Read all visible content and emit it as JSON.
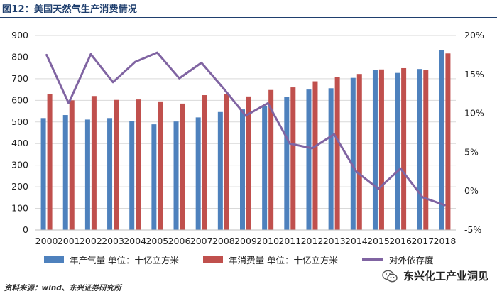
{
  "header": {
    "title": "图12：美国天然气生产消费情况"
  },
  "footer": {
    "source": "资料来源：wind、东兴证券研究所",
    "watermark": "东兴化工产业洞见"
  },
  "icons": {
    "watermark_icon": "wechat-icon"
  },
  "chart_data": {
    "type": "bar",
    "title": "美国天然气生产消费情况",
    "categories": [
      "2000",
      "2001",
      "2002",
      "2003",
      "2004",
      "2005",
      "2006",
      "2007",
      "2008",
      "2009",
      "2010",
      "2011",
      "2012",
      "2013",
      "2014",
      "2015",
      "2016",
      "2017",
      "2018"
    ],
    "series": [
      {
        "name": "年产气量 单位：十亿立方米",
        "type": "bar",
        "axis": "left",
        "color": "#4e81bd",
        "values": [
          518,
          532,
          511,
          518,
          504,
          489,
          502,
          521,
          546,
          558,
          575,
          615,
          650,
          656,
          704,
          740,
          727,
          745,
          832
        ]
      },
      {
        "name": "年消费量 单位：十亿立方米",
        "type": "bar",
        "axis": "left",
        "color": "#c0504d",
        "values": [
          628,
          600,
          620,
          602,
          604,
          595,
          585,
          624,
          629,
          618,
          648,
          660,
          688,
          708,
          722,
          743,
          749,
          739,
          817
        ]
      },
      {
        "name": "对外依存度",
        "type": "line",
        "axis": "right",
        "color": "#8064a2",
        "values": [
          17.5,
          11.3,
          17.6,
          14.0,
          16.6,
          17.8,
          14.5,
          16.5,
          13.2,
          9.7,
          11.3,
          6.1,
          5.5,
          7.3,
          2.5,
          0.3,
          2.9,
          -0.8,
          -1.8
        ]
      }
    ],
    "y_left": {
      "min": 0,
      "max": 900,
      "step": 100,
      "ticks": [
        "0",
        "100",
        "200",
        "300",
        "400",
        "500",
        "600",
        "700",
        "800",
        "900"
      ]
    },
    "y_right": {
      "min": -5,
      "max": 20,
      "step": 5,
      "ticks": [
        "-5%",
        "0%",
        "5%",
        "10%",
        "15%",
        "20%"
      ]
    },
    "grid": true,
    "legend_position": "bottom"
  }
}
